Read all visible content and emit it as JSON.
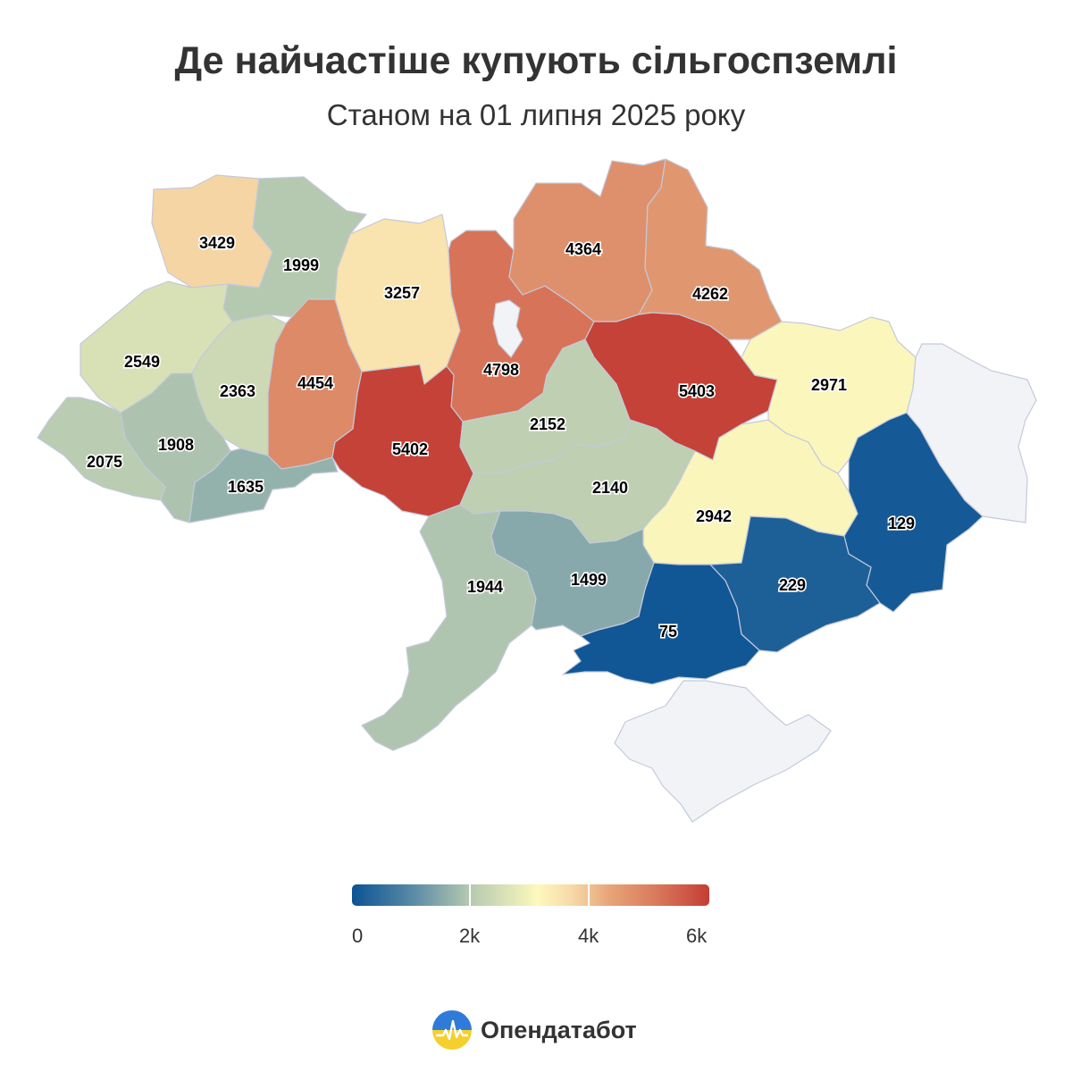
{
  "title": "Де найчастіше купують сільгоспземлі",
  "subtitle": "Станом на 01 липня 2025 року",
  "legend": {
    "ticks": [
      "0",
      "2k",
      "4k",
      "6k"
    ],
    "min": 0,
    "max": 6000
  },
  "brand": {
    "name": "Опендатабот",
    "logo_icon": "opendatabot-logo-icon"
  },
  "colors": {
    "no_data": "#f2f3f6",
    "border": "#c4c9dc"
  },
  "chart_data": {
    "type": "choropleth",
    "regions": [
      {
        "id": "volyn",
        "value": 3429
      },
      {
        "id": "rivne",
        "value": 1999
      },
      {
        "id": "zhytomyr",
        "value": 3257
      },
      {
        "id": "kyiv",
        "value": 4798
      },
      {
        "id": "chernihiv",
        "value": 4364
      },
      {
        "id": "sumy",
        "value": 4262
      },
      {
        "id": "lviv",
        "value": 2549
      },
      {
        "id": "ternopil",
        "value": 2363
      },
      {
        "id": "khmelnytskyi",
        "value": 4454
      },
      {
        "id": "vinnytsia",
        "value": 5402
      },
      {
        "id": "cherkasy",
        "value": 2152
      },
      {
        "id": "poltava",
        "value": 5403
      },
      {
        "id": "kharkiv",
        "value": 2971
      },
      {
        "id": "zakarpattia",
        "value": 2075
      },
      {
        "id": "ivano-frankivsk",
        "value": 1908
      },
      {
        "id": "chernivtsi",
        "value": 1635
      },
      {
        "id": "kirovohrad",
        "value": 2140
      },
      {
        "id": "dnipro",
        "value": 2942
      },
      {
        "id": "donetsk",
        "value": 129
      },
      {
        "id": "odesa",
        "value": 1944
      },
      {
        "id": "mykolaiv",
        "value": 1499
      },
      {
        "id": "zaporizhzhia",
        "value": 229
      },
      {
        "id": "kherson",
        "value": 75
      },
      {
        "id": "luhansk",
        "value": null
      },
      {
        "id": "crimea",
        "value": null
      },
      {
        "id": "kyiv-city",
        "value": null
      }
    ]
  }
}
